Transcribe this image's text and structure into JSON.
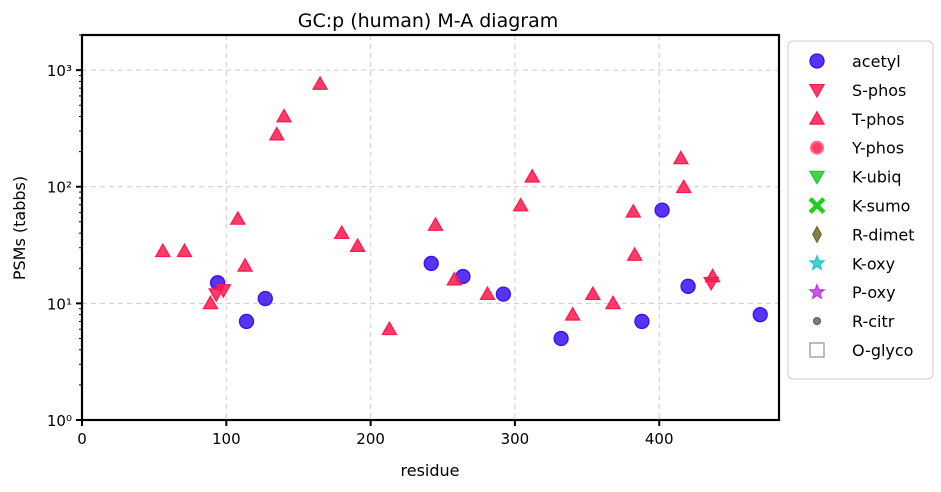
{
  "chart_data": {
    "type": "scatter",
    "title": "GC:p (human) M-A diagram",
    "xlabel": "residue",
    "ylabel": "PSMs (tabbs)",
    "xlim": [
      0,
      483
    ],
    "ylim": [
      1,
      2000
    ],
    "yscale": "log",
    "grid": true,
    "legend_position": "outside-right",
    "x_ticks": [
      0,
      100,
      200,
      300,
      400
    ],
    "x_tick_labels": [
      "0",
      "100",
      "200",
      "300",
      "400"
    ],
    "y_ticks": [
      1,
      10,
      100,
      1000
    ],
    "y_tick_labels": [
      "10⁰",
      "10¹",
      "10²",
      "10³"
    ],
    "series": [
      {
        "name": "acetyl",
        "marker": "circle",
        "color": "#3a0ff0",
        "points": [
          [
            94,
            15
          ],
          [
            114,
            7
          ],
          [
            127,
            11
          ],
          [
            242,
            22
          ],
          [
            264,
            17
          ],
          [
            292,
            12
          ],
          [
            332,
            5
          ],
          [
            388,
            7
          ],
          [
            402,
            63
          ],
          [
            420,
            14
          ],
          [
            470,
            8
          ]
        ]
      },
      {
        "name": "S-phos",
        "marker": "triangle-down",
        "color": "#ff1a4f",
        "points": [
          [
            93,
            12
          ],
          [
            98,
            13
          ],
          [
            436,
            15
          ]
        ]
      },
      {
        "name": "T-phos",
        "marker": "triangle-up",
        "color": "#ff1a4f",
        "points": [
          [
            56,
            28
          ],
          [
            71,
            28
          ],
          [
            89,
            10
          ],
          [
            108,
            53
          ],
          [
            113,
            21
          ],
          [
            135,
            280
          ],
          [
            140,
            400
          ],
          [
            165,
            760
          ],
          [
            180,
            40
          ],
          [
            191,
            31
          ],
          [
            213,
            6
          ],
          [
            245,
            47
          ],
          [
            258,
            16
          ],
          [
            281,
            12
          ],
          [
            304,
            69
          ],
          [
            312,
            122
          ],
          [
            340,
            8
          ],
          [
            354,
            12
          ],
          [
            368,
            10
          ],
          [
            382,
            61
          ],
          [
            383,
            26
          ],
          [
            415,
            175
          ],
          [
            417,
            99
          ],
          [
            437,
            17
          ]
        ]
      },
      {
        "name": "Y-phos",
        "marker": "circle-open",
        "color": "#ff1a4f",
        "points": []
      },
      {
        "name": "K-ubiq",
        "marker": "triangle-down",
        "color": "#22cc22",
        "points": []
      },
      {
        "name": "K-sumo",
        "marker": "x",
        "color": "#22cc22",
        "points": []
      },
      {
        "name": "R-dimet",
        "marker": "diamond",
        "color": "#6b6b2a",
        "points": []
      },
      {
        "name": "K-oxy",
        "marker": "star",
        "color": "#22c8c8",
        "points": []
      },
      {
        "name": "P-oxy",
        "marker": "star",
        "color": "#c03cdc",
        "points": []
      },
      {
        "name": "R-citr",
        "marker": "dot",
        "color": "#666666",
        "points": []
      },
      {
        "name": "O-glyco",
        "marker": "square-open",
        "color": "#999999",
        "points": []
      }
    ]
  }
}
